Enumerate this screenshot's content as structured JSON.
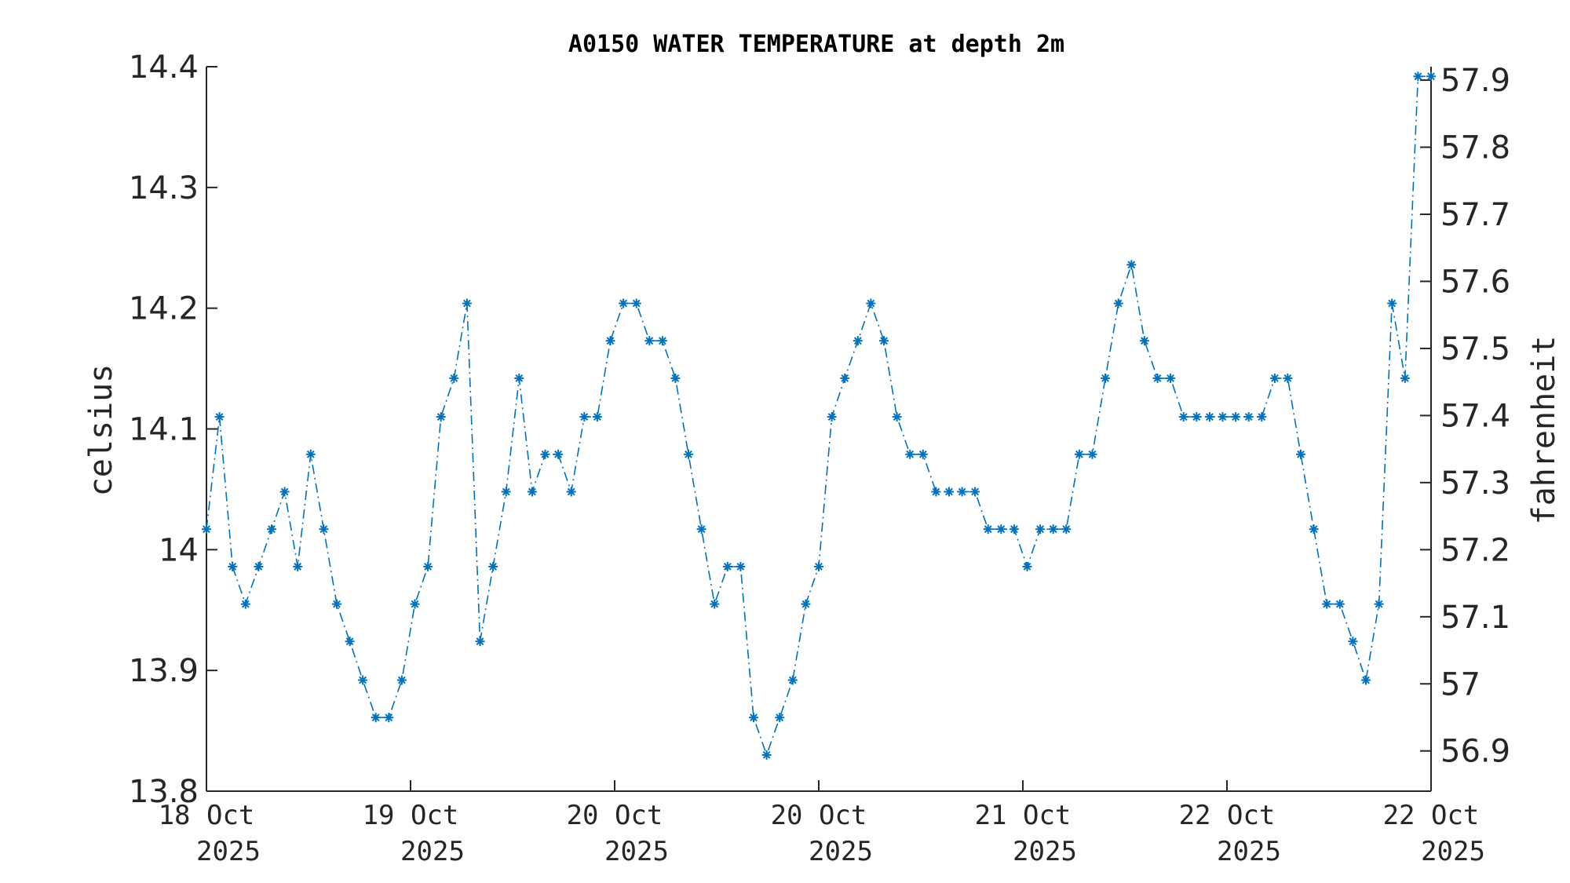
{
  "chart_data": {
    "type": "line",
    "title": "A0150 WATER TEMPERATURE at depth 2m",
    "ylabel": "celsius",
    "ylabel_right": "fahrenheit",
    "ylim": [
      13.8,
      14.4
    ],
    "ylim_right": [
      56.84,
      57.92
    ],
    "yticks": [
      "13.8",
      "13.9",
      "14",
      "14.1",
      "14.2",
      "14.3",
      "14.4"
    ],
    "yticks_right": [
      "56.9",
      "57",
      "57.1",
      "57.2",
      "57.3",
      "57.4",
      "57.5",
      "57.6",
      "57.7",
      "57.8",
      "57.9"
    ],
    "xticks": [
      {
        "line1": "18 Oct",
        "line2": "2025"
      },
      {
        "line1": "19 Oct",
        "line2": "2025"
      },
      {
        "line1": "20 Oct",
        "line2": "2025"
      },
      {
        "line1": "20 Oct",
        "line2": "2025"
      },
      {
        "line1": "21 Oct",
        "line2": "2025"
      },
      {
        "line1": "22 Oct",
        "line2": "2025"
      },
      {
        "line1": "22 Oct",
        "line2": "2025"
      }
    ],
    "marker": "asterisk",
    "line_style": "dash-dot",
    "color": "#0072bd",
    "grid": false,
    "series": [
      {
        "values": [
          14.017,
          14.11,
          13.986,
          13.955,
          13.986,
          14.017,
          14.048,
          13.986,
          14.079,
          14.017,
          13.955,
          13.924,
          13.892,
          13.861,
          13.861,
          13.892,
          13.955,
          13.986,
          14.11,
          14.142,
          14.204,
          13.924,
          13.986,
          14.048,
          14.142,
          14.048,
          14.079,
          14.079,
          14.048,
          14.11,
          14.11,
          14.173,
          14.204,
          14.204,
          14.173,
          14.173,
          14.142,
          14.079,
          14.017,
          13.955,
          13.986,
          13.986,
          13.861,
          13.83,
          13.861,
          13.892,
          13.955,
          13.986,
          14.11,
          14.142,
          14.173,
          14.204,
          14.173,
          14.11,
          14.079,
          14.079,
          14.048,
          14.048,
          14.048,
          14.048,
          14.017,
          14.017,
          14.017,
          13.986,
          14.017,
          14.017,
          14.017,
          14.079,
          14.079,
          14.142,
          14.204,
          14.236,
          14.173,
          14.142,
          14.142,
          14.11,
          14.11,
          14.11,
          14.11,
          14.11,
          14.11,
          14.11,
          14.142,
          14.142,
          14.079,
          14.017,
          13.955,
          13.955,
          13.924,
          13.892,
          13.955,
          14.204,
          14.142,
          14.392,
          14.392
        ]
      }
    ]
  }
}
